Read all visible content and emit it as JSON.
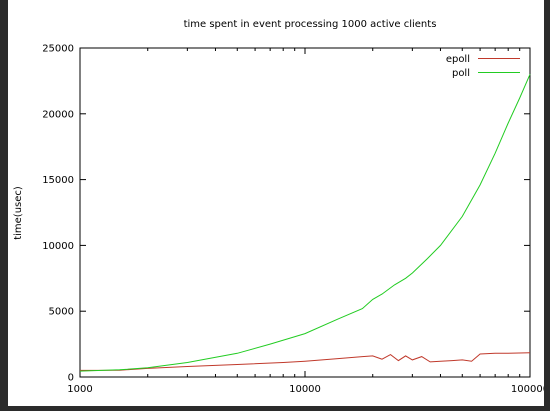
{
  "chart_data": {
    "type": "line",
    "title": "time spent in event processing 1000 active clients",
    "xlabel": "",
    "ylabel": "time(usec)",
    "xscale": "log",
    "xlim": [
      1000,
      100000
    ],
    "ylim": [
      0,
      25000
    ],
    "xticks": [
      1000,
      10000,
      100000
    ],
    "xtick_labels": [
      "1000",
      "10000",
      "100000"
    ],
    "yticks": [
      0,
      5000,
      10000,
      15000,
      20000,
      25000
    ],
    "ytick_labels": [
      "0",
      "5000",
      "10000",
      "15000",
      "20000",
      "25000"
    ],
    "grid": false,
    "legend_position": "top-right",
    "series": [
      {
        "name": "epoll",
        "color": "#c0392b",
        "x": [
          1000,
          1500,
          2000,
          3000,
          5000,
          8000,
          10000,
          14000,
          18000,
          20000,
          22000,
          24000,
          26000,
          28000,
          30000,
          33000,
          36000,
          40000,
          45000,
          50000,
          55000,
          60000,
          70000,
          80000,
          100000
        ],
        "y": [
          500,
          520,
          650,
          800,
          950,
          1100,
          1200,
          1400,
          1550,
          1600,
          1350,
          1700,
          1250,
          1600,
          1300,
          1550,
          1150,
          1200,
          1250,
          1300,
          1200,
          1750,
          1800,
          1800,
          1850
        ]
      },
      {
        "name": "poll",
        "color": "#22cc22",
        "x": [
          1000,
          1500,
          2000,
          3000,
          5000,
          7000,
          10000,
          14000,
          18000,
          20000,
          22000,
          25000,
          28000,
          30000,
          35000,
          40000,
          50000,
          60000,
          70000,
          80000,
          90000,
          100000
        ],
        "y": [
          450,
          550,
          700,
          1100,
          1800,
          2500,
          3300,
          4400,
          5200,
          5900,
          6300,
          7000,
          7500,
          7900,
          9000,
          10000,
          12200,
          14600,
          17000,
          19300,
          21200,
          23000
        ]
      }
    ]
  }
}
